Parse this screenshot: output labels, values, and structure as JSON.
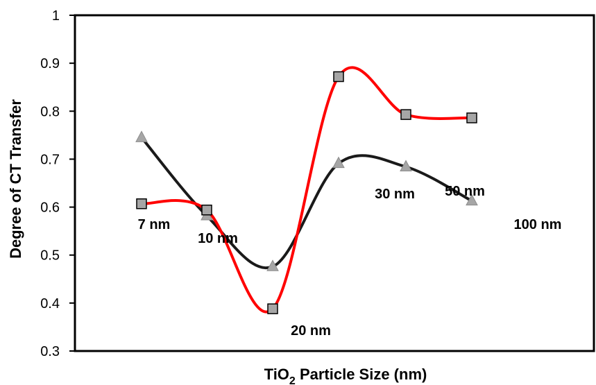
{
  "chart_data": {
    "type": "line",
    "title": "",
    "xlabel": {
      "main": "TiO",
      "sub": "2",
      "rest": " Particle Size (nm)"
    },
    "ylabel": "Degree of CT Transfer",
    "ylim": [
      0.3,
      1.0
    ],
    "yticks": [
      "0.3",
      "0.4",
      "0.5",
      "0.6",
      "0.7",
      "0.8",
      "0.9",
      "1"
    ],
    "x": [
      1,
      2,
      3,
      4,
      5,
      6
    ],
    "grid": false,
    "legend": "none",
    "series": [
      {
        "values": [
          0.607,
          0.594,
          0.388,
          0.872,
          0.793,
          0.786
        ],
        "line_color": "#ff0000",
        "marker": "square",
        "marker_color": "#a6a6a6"
      },
      {
        "values": [
          0.745,
          0.582,
          0.476,
          0.691,
          0.684,
          0.613
        ],
        "line_color": "#1a1a1a",
        "marker": "triangle",
        "marker_color": "#a6a6a6"
      }
    ],
    "annotations": [
      "7 nm",
      "10 nm",
      "20 nm",
      "30 nm",
      "50 nm",
      "100 nm"
    ]
  }
}
